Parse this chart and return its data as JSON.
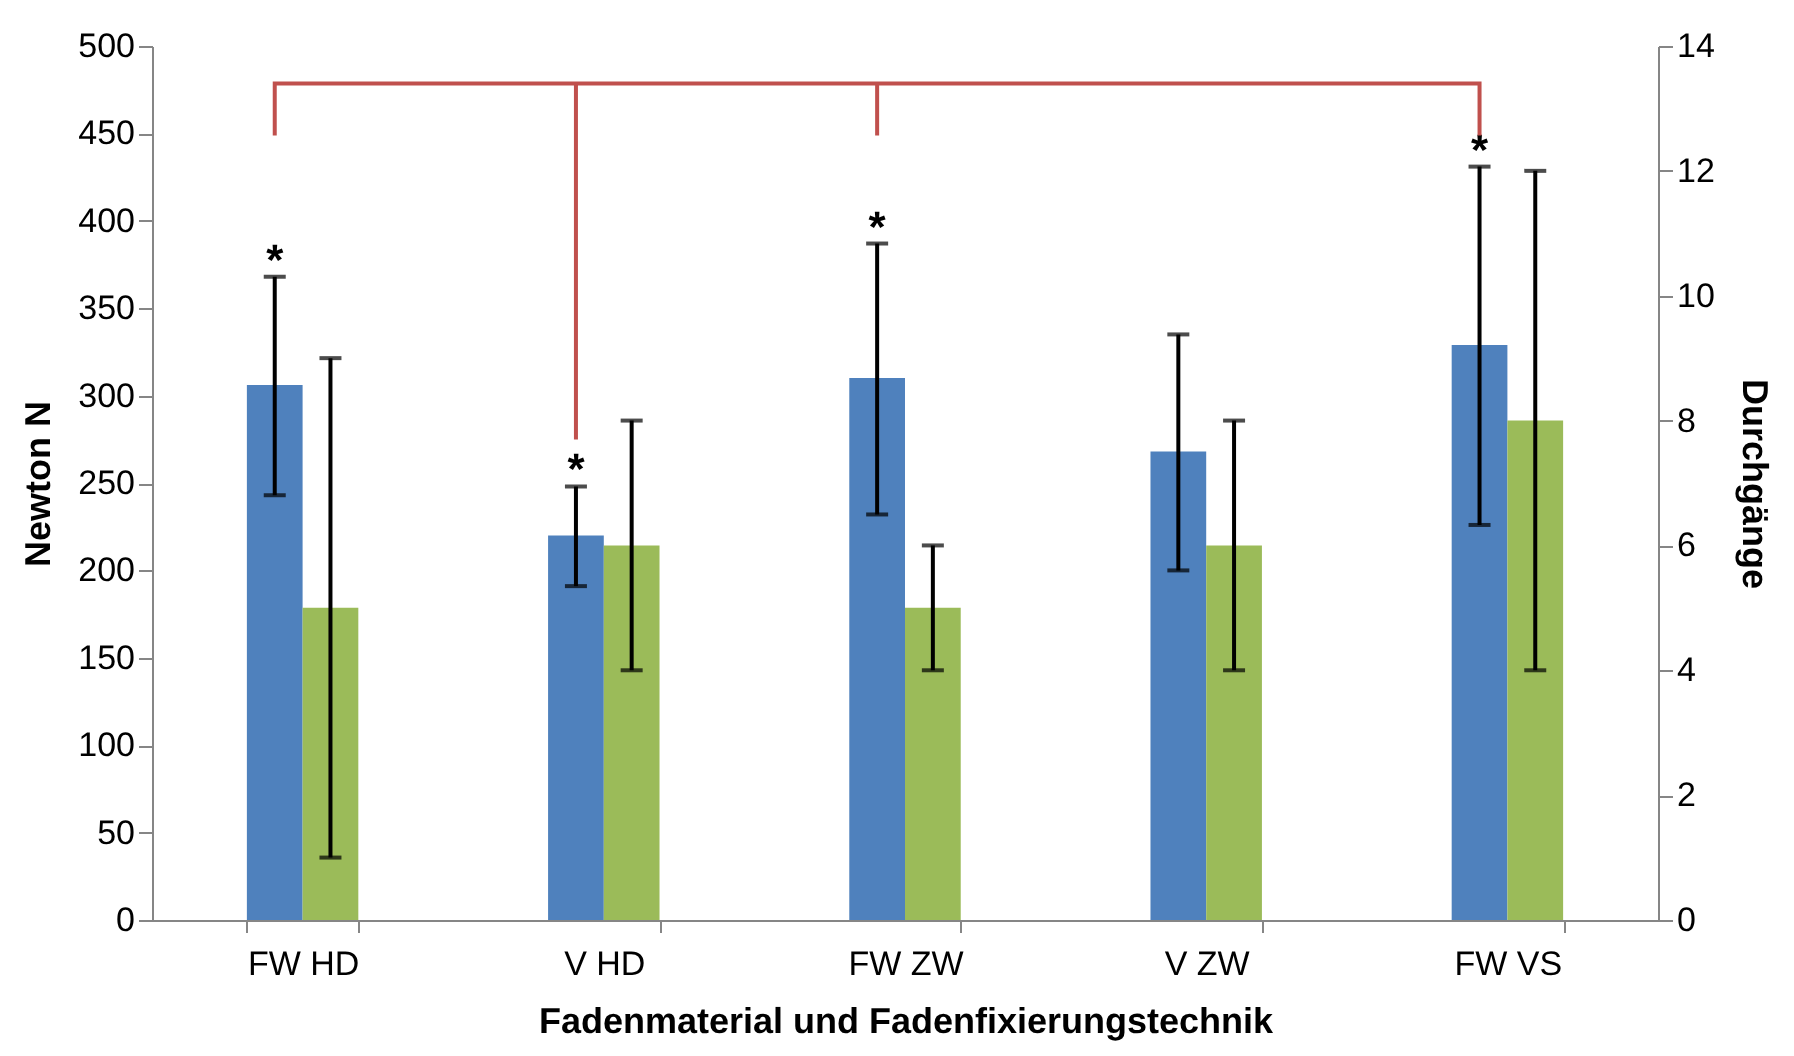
{
  "chart_data": {
    "type": "bar",
    "categories": [
      "FW HD",
      "V HD",
      "FW ZW",
      "V ZW",
      "FW VS"
    ],
    "xlabel": "Fadenmaterial und Fadenfixierungstechnik",
    "ylabel": "Newton N",
    "y2label": "Durchgänge",
    "series": [
      {
        "color": "#4f81bd",
        "values": [
          306,
          220,
          310,
          268,
          329
        ],
        "errors": [
          [
            243,
            368
          ],
          [
            191,
            248
          ],
          [
            232,
            387
          ],
          [
            200,
            335
          ],
          [
            226,
            431
          ]
        ]
      },
      {
        "color": "#9bbb59",
        "axis": "y2",
        "values": [
          5,
          6,
          5,
          6,
          8
        ],
        "errors": [
          [
            1,
            9
          ],
          [
            4,
            8
          ],
          [
            4,
            6
          ],
          [
            4,
            8
          ],
          [
            4,
            12
          ]
        ]
      }
    ],
    "ylim": [
      0,
      500
    ],
    "yticks": [
      0,
      50,
      100,
      150,
      200,
      250,
      300,
      350,
      400,
      450,
      500
    ],
    "y2lim": [
      0,
      14
    ],
    "y2ticks": [
      0,
      2,
      4,
      6,
      8,
      10,
      12,
      14
    ],
    "annotations": [
      "*",
      "*",
      "*",
      "*"
    ],
    "grid": false,
    "legend": false
  }
}
